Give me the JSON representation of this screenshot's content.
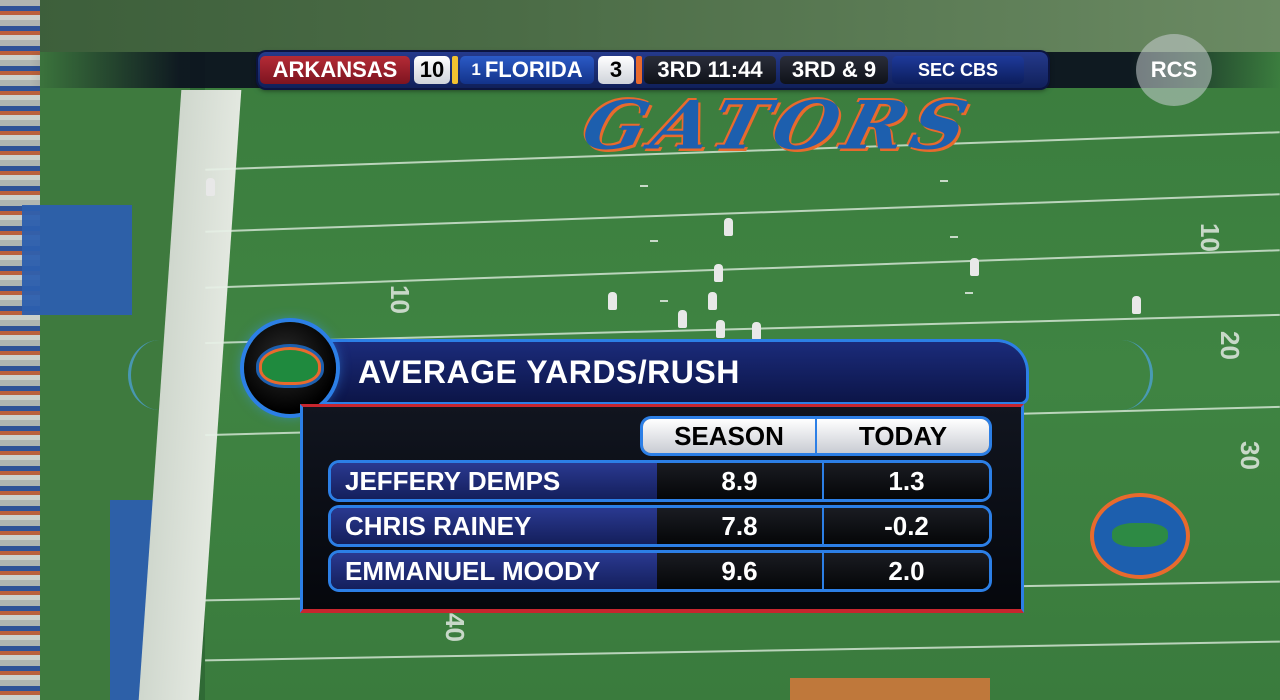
{
  "scorebug": {
    "away_team": "ARKANSAS",
    "away_score": "10",
    "home_rank": "1",
    "home_team": "FLORIDA",
    "home_score": "3",
    "clock": "3RD 11:44",
    "down_distance": "3RD & 9",
    "network": "SEC CBS",
    "colors": {
      "away": "#b42b36",
      "home": "#2b5ac6",
      "accent_orange": "#e86a2d"
    }
  },
  "watermark": "RCS",
  "field": {
    "endzone_text": "GATORS",
    "yard_numbers": [
      "10",
      "10",
      "20",
      "30",
      "40"
    ]
  },
  "stats_graphic": {
    "logo": "florida-gators-logo",
    "title": "AVERAGE YARDS/RUSH",
    "columns": [
      "SEASON",
      "TODAY"
    ],
    "rows": [
      {
        "name": "JEFFERY DEMPS",
        "season": "8.9",
        "today": "1.3"
      },
      {
        "name": "CHRIS RAINEY",
        "season": "7.8",
        "today": "-0.2"
      },
      {
        "name": "EMMANUEL MOODY",
        "season": "9.6",
        "today": "2.0"
      }
    ],
    "colors": {
      "frame": "#2c7fe6",
      "trim": "#c7262e",
      "title_bg": "#1b2b7a"
    }
  }
}
